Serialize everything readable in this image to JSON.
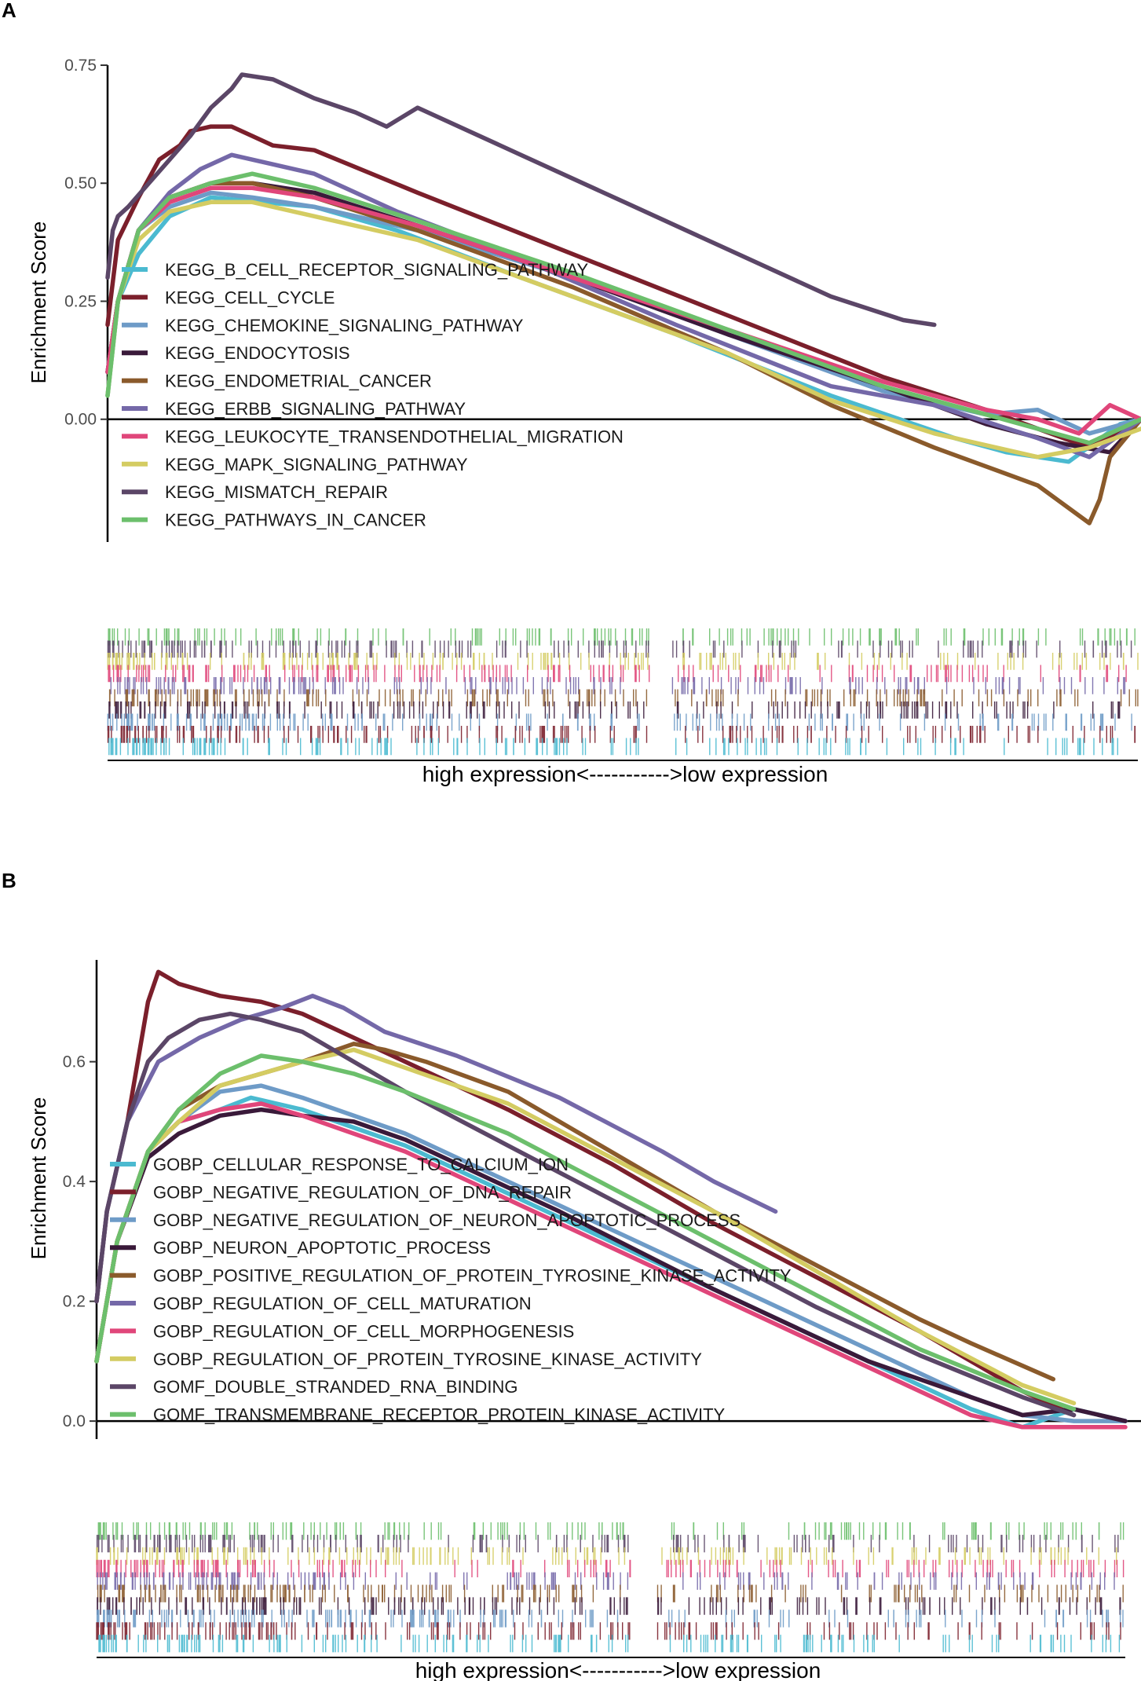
{
  "chart_data": [
    {
      "type": "line",
      "panel": "A",
      "title": "",
      "xlabel": "high expression<----------->low expression",
      "ylabel": "Enrichment Score",
      "ylim": [
        -0.26,
        0.75
      ],
      "yticks": [
        0.0,
        0.25,
        0.5,
        0.75
      ],
      "yticklabels": [
        "0.00",
        "0.25",
        "0.50",
        "0.75"
      ],
      "legend_position": "center-left",
      "series": [
        {
          "name": "KEGG_B_CELL_RECEPTOR_SIGNALING_PATHWAY",
          "color": "#4bbad0",
          "x": [
            0,
            1,
            3,
            6,
            10,
            15,
            20,
            28,
            40,
            55,
            70,
            78,
            82,
            87,
            93,
            98,
            100
          ],
          "y": [
            0.05,
            0.25,
            0.35,
            0.43,
            0.47,
            0.46,
            0.45,
            0.4,
            0.3,
            0.18,
            0.05,
            -0.01,
            -0.04,
            -0.07,
            -0.09,
            -0.01,
            0.0
          ]
        },
        {
          "name": "KEGG_CELL_CYCLE",
          "color": "#7b1f2b",
          "x": [
            0,
            1,
            3,
            5,
            7,
            8,
            10,
            12,
            14,
            16,
            20,
            30,
            45,
            60,
            75,
            85,
            95,
            100
          ],
          "y": [
            0.2,
            0.38,
            0.47,
            0.55,
            0.58,
            0.61,
            0.62,
            0.62,
            0.6,
            0.58,
            0.57,
            0.48,
            0.35,
            0.22,
            0.09,
            0.02,
            -0.06,
            0.0
          ]
        },
        {
          "name": "KEGG_CHEMOKINE_SIGNALING_PATHWAY",
          "color": "#6e9bc7",
          "x": [
            0,
            1,
            3,
            6,
            10,
            14,
            20,
            30,
            45,
            60,
            75,
            85,
            90,
            95,
            100
          ],
          "y": [
            0.1,
            0.25,
            0.4,
            0.45,
            0.48,
            0.47,
            0.45,
            0.4,
            0.3,
            0.18,
            0.06,
            0.01,
            0.02,
            -0.03,
            0.0
          ]
        },
        {
          "name": "KEGG_ENDOCYTOSIS",
          "color": "#3a1a3a",
          "x": [
            0,
            1,
            3,
            6,
            10,
            14,
            20,
            30,
            45,
            60,
            75,
            85,
            92,
            97,
            100
          ],
          "y": [
            0.1,
            0.25,
            0.4,
            0.47,
            0.5,
            0.5,
            0.48,
            0.41,
            0.3,
            0.18,
            0.07,
            -0.01,
            -0.05,
            -0.07,
            0.0
          ]
        },
        {
          "name": "KEGG_ENDOMETRIAL_CANCER",
          "color": "#8a5a2b",
          "x": [
            0,
            1,
            3,
            6,
            10,
            14,
            20,
            30,
            45,
            60,
            70,
            80,
            85,
            90,
            95,
            96,
            97,
            100
          ],
          "y": [
            0.1,
            0.25,
            0.4,
            0.47,
            0.5,
            0.5,
            0.47,
            0.4,
            0.28,
            0.14,
            0.03,
            -0.06,
            -0.1,
            -0.14,
            -0.22,
            -0.17,
            -0.08,
            0.0
          ]
        },
        {
          "name": "KEGG_ERBB_SIGNALING_PATHWAY",
          "color": "#7468a8",
          "x": [
            0,
            1,
            3,
            6,
            9,
            12,
            16,
            20,
            28,
            40,
            55,
            70,
            80,
            90,
            95,
            100
          ],
          "y": [
            0.1,
            0.25,
            0.4,
            0.48,
            0.53,
            0.56,
            0.54,
            0.52,
            0.44,
            0.34,
            0.2,
            0.07,
            0.03,
            -0.04,
            -0.08,
            0.0
          ]
        },
        {
          "name": "KEGG_LEUKOCYTE_TRANSENDOTHELIAL_MIGRATION",
          "color": "#e0467a",
          "x": [
            0,
            1,
            3,
            6,
            10,
            14,
            20,
            30,
            45,
            60,
            75,
            85,
            90,
            94,
            97,
            100
          ],
          "y": [
            0.1,
            0.25,
            0.4,
            0.46,
            0.49,
            0.49,
            0.47,
            0.41,
            0.3,
            0.19,
            0.08,
            0.02,
            0.0,
            -0.03,
            0.03,
            0.0
          ]
        },
        {
          "name": "KEGG_MAPK_SIGNALING_PATHWAY",
          "color": "#d4cc62",
          "x": [
            0,
            1,
            3,
            6,
            10,
            14,
            20,
            30,
            45,
            60,
            70,
            80,
            90,
            95,
            100
          ],
          "y": [
            0.05,
            0.25,
            0.38,
            0.44,
            0.46,
            0.46,
            0.43,
            0.38,
            0.26,
            0.14,
            0.04,
            -0.03,
            -0.08,
            -0.06,
            -0.02
          ]
        },
        {
          "name": "KEGG_MISMATCH_REPAIR",
          "color": "#5b4667",
          "x": [
            0,
            0.5,
            1,
            2,
            4,
            6,
            8,
            10,
            12,
            13,
            16,
            20,
            24,
            27,
            30,
            40,
            50,
            60,
            70,
            77,
            80
          ],
          "y": [
            0.3,
            0.4,
            0.43,
            0.45,
            0.5,
            0.55,
            0.6,
            0.66,
            0.7,
            0.73,
            0.72,
            0.68,
            0.65,
            0.62,
            0.66,
            0.56,
            0.46,
            0.36,
            0.26,
            0.21,
            0.2
          ]
        },
        {
          "name": "KEGG_PATHWAYS_IN_CANCER",
          "color": "#6cbf6c",
          "x": [
            0,
            1,
            3,
            6,
            10,
            14,
            20,
            30,
            45,
            60,
            75,
            85,
            90,
            95,
            100
          ],
          "y": [
            0.05,
            0.25,
            0.4,
            0.47,
            0.5,
            0.52,
            0.49,
            0.42,
            0.31,
            0.19,
            0.07,
            0.01,
            -0.02,
            -0.05,
            0.0
          ]
        }
      ]
    },
    {
      "type": "line",
      "panel": "B",
      "title": "",
      "xlabel": "high expression<----------->low expression",
      "ylabel": "Enrichment Score",
      "ylim": [
        -0.03,
        0.77
      ],
      "yticks": [
        0.0,
        0.2,
        0.4,
        0.6
      ],
      "yticklabels": [
        "0.0",
        "0.2",
        "0.4",
        "0.6"
      ],
      "legend_position": "center-left",
      "series": [
        {
          "name": "GOBP_CELLULAR_RESPONSE_TO_CALCIUM_ION",
          "color": "#4bbad0",
          "x": [
            0,
            2,
            5,
            8,
            12,
            15,
            20,
            30,
            45,
            60,
            75,
            85,
            90,
            95,
            100
          ],
          "y": [
            0.1,
            0.3,
            0.45,
            0.5,
            0.52,
            0.54,
            0.52,
            0.46,
            0.34,
            0.22,
            0.1,
            0.02,
            -0.01,
            0.02,
            0.0
          ]
        },
        {
          "name": "GOBP_NEGATIVE_REGULATION_OF_DNA_REPAIR",
          "color": "#7b1f2b",
          "x": [
            0,
            1,
            3,
            4,
            5,
            6,
            8,
            12,
            16,
            20,
            25,
            30,
            40,
            50,
            60,
            70,
            80,
            90,
            95
          ],
          "y": [
            0.2,
            0.35,
            0.5,
            0.6,
            0.7,
            0.75,
            0.73,
            0.71,
            0.7,
            0.68,
            0.64,
            0.6,
            0.52,
            0.43,
            0.33,
            0.24,
            0.15,
            0.05,
            0.01
          ]
        },
        {
          "name": "GOBP_NEGATIVE_REGULATION_OF_NEURON_APOPTOTIC_PROCESS",
          "color": "#6e9bc7",
          "x": [
            0,
            2,
            5,
            8,
            12,
            16,
            20,
            30,
            45,
            60,
            75,
            85,
            90,
            95,
            100
          ],
          "y": [
            0.1,
            0.3,
            0.45,
            0.5,
            0.55,
            0.56,
            0.54,
            0.48,
            0.36,
            0.24,
            0.12,
            0.04,
            0.01,
            0.0,
            0.0
          ]
        },
        {
          "name": "GOBP_NEURON_APOPTOTIC_PROCESS",
          "color": "#3a1a3a",
          "x": [
            0,
            2,
            5,
            8,
            12,
            16,
            20,
            25,
            30,
            45,
            60,
            75,
            85,
            90,
            95,
            100
          ],
          "y": [
            0.1,
            0.3,
            0.44,
            0.48,
            0.51,
            0.52,
            0.51,
            0.5,
            0.47,
            0.35,
            0.22,
            0.1,
            0.04,
            0.01,
            0.02,
            0.0
          ]
        },
        {
          "name": "GOBP_POSITIVE_REGULATION_OF_PROTEIN_TYROSINE_KINASE_ACTIVITY",
          "color": "#8a5a2b",
          "x": [
            0,
            2,
            5,
            8,
            12,
            16,
            20,
            25,
            28,
            32,
            40,
            50,
            60,
            70,
            80,
            85,
            93
          ],
          "y": [
            0.1,
            0.3,
            0.45,
            0.52,
            0.56,
            0.58,
            0.6,
            0.63,
            0.62,
            0.6,
            0.55,
            0.45,
            0.35,
            0.26,
            0.17,
            0.13,
            0.07
          ]
        },
        {
          "name": "GOBP_REGULATION_OF_CELL_MATURATION",
          "color": "#7468a8",
          "x": [
            0,
            1,
            3,
            6,
            10,
            14,
            18,
            21,
            24,
            28,
            35,
            45,
            55,
            60,
            66
          ],
          "y": [
            0.2,
            0.35,
            0.5,
            0.6,
            0.64,
            0.67,
            0.69,
            0.71,
            0.69,
            0.65,
            0.61,
            0.54,
            0.45,
            0.4,
            0.35
          ]
        },
        {
          "name": "GOBP_REGULATION_OF_CELL_MORPHOGENESIS",
          "color": "#e0467a",
          "x": [
            0,
            2,
            5,
            8,
            12,
            16,
            20,
            30,
            45,
            60,
            75,
            85,
            90,
            95,
            100
          ],
          "y": [
            0.1,
            0.3,
            0.45,
            0.5,
            0.52,
            0.53,
            0.51,
            0.45,
            0.33,
            0.21,
            0.09,
            0.01,
            -0.01,
            -0.01,
            -0.01
          ]
        },
        {
          "name": "GOBP_REGULATION_OF_PROTEIN_TYROSINE_KINASE_ACTIVITY",
          "color": "#d4cc62",
          "x": [
            0,
            2,
            5,
            8,
            12,
            16,
            20,
            25,
            30,
            40,
            50,
            60,
            70,
            80,
            90,
            95
          ],
          "y": [
            0.1,
            0.3,
            0.45,
            0.5,
            0.56,
            0.58,
            0.6,
            0.62,
            0.59,
            0.53,
            0.44,
            0.35,
            0.25,
            0.15,
            0.06,
            0.03
          ]
        },
        {
          "name": "GOMF_DOUBLE_STRANDED_RNA_BINDING",
          "color": "#5b4667",
          "x": [
            0,
            1,
            3,
            5,
            7,
            10,
            13,
            16,
            20,
            25,
            30,
            40,
            50,
            60,
            70,
            80,
            90,
            95
          ],
          "y": [
            0.2,
            0.35,
            0.5,
            0.6,
            0.64,
            0.67,
            0.68,
            0.67,
            0.65,
            0.6,
            0.55,
            0.46,
            0.37,
            0.28,
            0.19,
            0.11,
            0.04,
            0.01
          ]
        },
        {
          "name": "GOMF_TRANSMEMBRANE_RECEPTOR_PROTEIN_KINASE_ACTIVITY",
          "color": "#6cbf6c",
          "x": [
            0,
            2,
            5,
            8,
            12,
            16,
            20,
            25,
            30,
            40,
            50,
            60,
            70,
            80,
            90,
            95
          ],
          "y": [
            0.1,
            0.3,
            0.45,
            0.52,
            0.58,
            0.61,
            0.6,
            0.58,
            0.55,
            0.48,
            0.39,
            0.3,
            0.21,
            0.12,
            0.05,
            0.02
          ]
        }
      ]
    }
  ],
  "panels": {
    "A": {
      "label": "A"
    },
    "B": {
      "label": "B"
    }
  }
}
